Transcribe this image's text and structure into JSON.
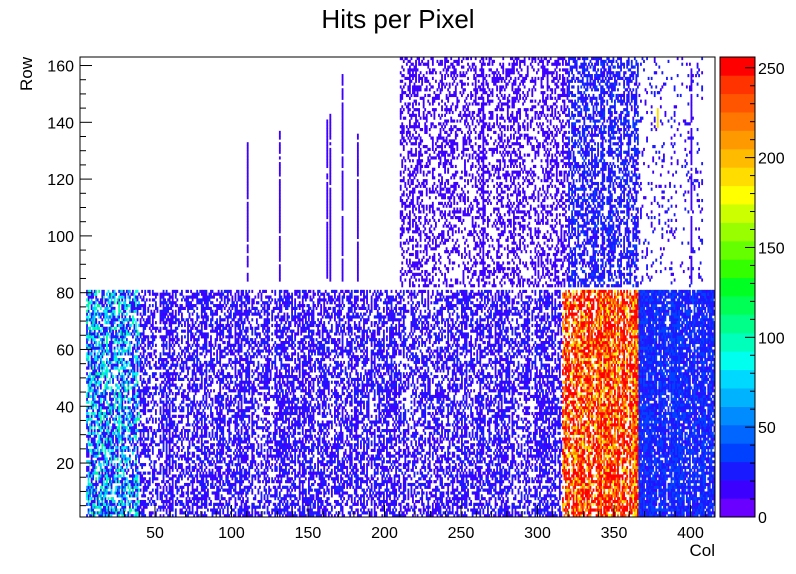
{
  "chart_data": {
    "type": "heatmap",
    "title": "Hits per Pixel",
    "xlabel": "Col",
    "ylabel": "Row",
    "xlim": [
      1,
      416
    ],
    "ylim": [
      1,
      163
    ],
    "x_ticks": [
      50,
      100,
      150,
      200,
      250,
      300,
      350,
      400
    ],
    "y_ticks": [
      20,
      40,
      60,
      80,
      100,
      120,
      140,
      160
    ],
    "colorbar": {
      "range": [
        0,
        256
      ],
      "ticks": [
        0,
        50,
        100,
        150,
        200,
        250
      ],
      "palette": [
        "#6a00ff",
        "#3c00ff",
        "#1a1aff",
        "#0040ff",
        "#0066ff",
        "#008cff",
        "#00b3ff",
        "#00d9ff",
        "#00ffee",
        "#00ffbb",
        "#00ff88",
        "#00ff55",
        "#00ff22",
        "#33ff00",
        "#66ff00",
        "#99ff00",
        "#ccff00",
        "#ffff00",
        "#ffdd00",
        "#ffbb00",
        "#ff9900",
        "#ff7700",
        "#ff5500",
        "#ff3300",
        "#ff0000"
      ]
    },
    "regions": [
      {
        "x": [
          5,
          416
        ],
        "y": [
          1,
          81
        ],
        "density": 0.5,
        "level": 20
      },
      {
        "x": [
          5,
          40
        ],
        "y": [
          1,
          81
        ],
        "density": 0.3,
        "level": 85
      },
      {
        "x": [
          316,
          366
        ],
        "y": [
          1,
          81
        ],
        "density": 0.75,
        "level": 250
      },
      {
        "x": [
          366,
          416
        ],
        "y": [
          1,
          81
        ],
        "density": 0.7,
        "level": 30
      },
      {
        "x": [
          210,
          320
        ],
        "y": [
          82,
          163
        ],
        "density": 0.35,
        "level": 15
      },
      {
        "x": [
          320,
          366
        ],
        "y": [
          82,
          163
        ],
        "density": 0.5,
        "level": 25
      },
      {
        "x": [
          366,
          408
        ],
        "y": [
          82,
          163
        ],
        "density": 0.1,
        "level": 20
      }
    ],
    "columns": [
      {
        "x": 110,
        "y": [
          84,
          133
        ],
        "level": 20
      },
      {
        "x": 131,
        "y": [
          84,
          137
        ],
        "level": 20
      },
      {
        "x": 162,
        "y": [
          84,
          141
        ],
        "level": 15
      },
      {
        "x": 164,
        "y": [
          84,
          143
        ],
        "level": 15
      },
      {
        "x": 172,
        "y": [
          84,
          157
        ],
        "level": 15
      },
      {
        "x": 182,
        "y": [
          84,
          136
        ],
        "level": 15
      },
      {
        "x": 264,
        "y": [
          84,
          163
        ],
        "level": 20
      },
      {
        "x": 378,
        "y": [
          138,
          145
        ],
        "level": 190
      },
      {
        "x": 400,
        "y": [
          84,
          159
        ],
        "level": 20
      }
    ]
  }
}
